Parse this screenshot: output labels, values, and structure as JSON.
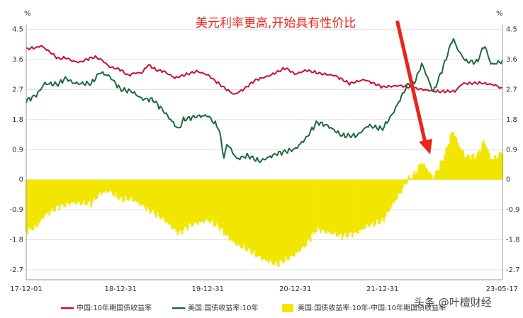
{
  "chart_data": {
    "type": "line",
    "title": "",
    "left_unit": "%",
    "right_unit": "%",
    "ylim": [
      -3.0,
      4.6
    ],
    "y_ticks": [
      "4.5",
      "3.6",
      "2.7",
      "1.8",
      "0.9",
      "0",
      "-0.9",
      "-1.8",
      "-2.7"
    ],
    "x_ticks": [
      "17-12-01",
      "18-12-31",
      "19-12-31",
      "20-12-31",
      "21-12-31",
      "23-05-17"
    ],
    "annotation": "美元利率更高,开始具有性价比",
    "watermark": "头条 @叶檀财经",
    "colors": {
      "china": "#c8102e",
      "us": "#1a6b3a",
      "spread": "#f2e600",
      "annotation": "#e8261c"
    },
    "series": [
      {
        "name": "中国:10年期国债收益率",
        "style": "line",
        "points": [
          [
            "2017-12-01",
            3.92
          ],
          [
            "2018-01-15",
            3.96
          ],
          [
            "2018-02-01",
            4.02
          ],
          [
            "2018-03-15",
            3.8
          ],
          [
            "2018-04-15",
            3.62
          ],
          [
            "2018-05-15",
            3.66
          ],
          [
            "2018-06-15",
            3.55
          ],
          [
            "2018-07-15",
            3.52
          ],
          [
            "2018-08-15",
            3.62
          ],
          [
            "2018-09-15",
            3.68
          ],
          [
            "2018-10-15",
            3.58
          ],
          [
            "2018-11-15",
            3.38
          ],
          [
            "2018-12-31",
            3.3
          ],
          [
            "2019-01-31",
            3.12
          ],
          [
            "2019-02-28",
            3.2
          ],
          [
            "2019-03-31",
            3.2
          ],
          [
            "2019-04-25",
            3.45
          ],
          [
            "2019-05-31",
            3.28
          ],
          [
            "2019-06-30",
            3.25
          ],
          [
            "2019-08-15",
            3.05
          ],
          [
            "2019-09-30",
            3.15
          ],
          [
            "2019-11-15",
            3.25
          ],
          [
            "2019-12-31",
            3.14
          ],
          [
            "2020-01-31",
            2.96
          ],
          [
            "2020-03-15",
            2.72
          ],
          [
            "2020-04-20",
            2.55
          ],
          [
            "2020-05-31",
            2.72
          ],
          [
            "2020-07-15",
            2.98
          ],
          [
            "2020-09-15",
            3.12
          ],
          [
            "2020-11-20",
            3.35
          ],
          [
            "2020-12-31",
            3.16
          ],
          [
            "2021-02-15",
            3.28
          ],
          [
            "2021-04-15",
            3.18
          ],
          [
            "2021-06-15",
            3.12
          ],
          [
            "2021-08-15",
            2.88
          ],
          [
            "2021-10-15",
            3.0
          ],
          [
            "2021-12-31",
            2.78
          ],
          [
            "2022-03-15",
            2.82
          ],
          [
            "2022-05-31",
            2.72
          ],
          [
            "2022-08-20",
            2.64
          ],
          [
            "2022-10-31",
            2.65
          ],
          [
            "2022-11-30",
            2.88
          ],
          [
            "2023-02-15",
            2.9
          ],
          [
            "2023-04-15",
            2.84
          ],
          [
            "2023-05-17",
            2.72
          ]
        ]
      },
      {
        "name": "美国:国债收益率:10年",
        "style": "line",
        "points": [
          [
            "2017-12-01",
            2.36
          ],
          [
            "2018-01-15",
            2.55
          ],
          [
            "2018-02-15",
            2.88
          ],
          [
            "2018-04-15",
            2.86
          ],
          [
            "2018-05-15",
            3.05
          ],
          [
            "2018-06-15",
            2.9
          ],
          [
            "2018-07-15",
            2.88
          ],
          [
            "2018-08-31",
            2.88
          ],
          [
            "2018-10-05",
            3.22
          ],
          [
            "2018-11-15",
            3.1
          ],
          [
            "2018-12-31",
            2.7
          ],
          [
            "2019-02-15",
            2.65
          ],
          [
            "2019-03-31",
            2.42
          ],
          [
            "2019-05-15",
            2.4
          ],
          [
            "2019-06-30",
            2.05
          ],
          [
            "2019-08-31",
            1.5
          ],
          [
            "2019-09-20",
            1.8
          ],
          [
            "2019-11-15",
            1.9
          ],
          [
            "2019-12-31",
            1.92
          ],
          [
            "2020-02-15",
            1.55
          ],
          [
            "2020-03-09",
            0.6
          ],
          [
            "2020-03-20",
            1.1
          ],
          [
            "2020-04-30",
            0.62
          ],
          [
            "2020-06-15",
            0.72
          ],
          [
            "2020-08-04",
            0.55
          ],
          [
            "2020-10-15",
            0.78
          ],
          [
            "2020-12-31",
            0.92
          ],
          [
            "2021-02-15",
            1.25
          ],
          [
            "2021-03-31",
            1.72
          ],
          [
            "2021-05-15",
            1.62
          ],
          [
            "2021-07-15",
            1.32
          ],
          [
            "2021-09-15",
            1.32
          ],
          [
            "2021-10-31",
            1.62
          ],
          [
            "2021-12-31",
            1.52
          ],
          [
            "2022-02-15",
            2.02
          ],
          [
            "2022-04-15",
            2.85
          ],
          [
            "2022-05-15",
            2.92
          ],
          [
            "2022-06-14",
            3.48
          ],
          [
            "2022-08-01",
            2.62
          ],
          [
            "2022-09-15",
            3.45
          ],
          [
            "2022-10-21",
            4.24
          ],
          [
            "2022-11-15",
            3.85
          ],
          [
            "2022-12-15",
            3.55
          ],
          [
            "2023-01-31",
            3.52
          ],
          [
            "2023-03-02",
            4.05
          ],
          [
            "2023-03-31",
            3.45
          ],
          [
            "2023-04-15",
            3.48
          ],
          [
            "2023-05-17",
            3.55
          ]
        ]
      },
      {
        "name": "美国:国债收益率:10年-中国:10年期国债收益率",
        "style": "bar",
        "points": [
          [
            "2017-12-01",
            -1.56
          ],
          [
            "2018-01-15",
            -1.41
          ],
          [
            "2018-02-15",
            -1.08
          ],
          [
            "2018-04-15",
            -0.82
          ],
          [
            "2018-06-15",
            -0.7
          ],
          [
            "2018-08-31",
            -0.72
          ],
          [
            "2018-10-05",
            -0.42
          ],
          [
            "2018-11-15",
            -0.35
          ],
          [
            "2018-12-31",
            -0.6
          ],
          [
            "2019-02-15",
            -0.58
          ],
          [
            "2019-04-15",
            -0.85
          ],
          [
            "2019-06-30",
            -1.2
          ],
          [
            "2019-08-31",
            -1.62
          ],
          [
            "2019-10-15",
            -1.38
          ],
          [
            "2019-12-31",
            -1.22
          ],
          [
            "2020-02-15",
            -1.42
          ],
          [
            "2020-03-20",
            -1.7
          ],
          [
            "2020-04-30",
            -1.95
          ],
          [
            "2020-06-15",
            -2.1
          ],
          [
            "2020-08-15",
            -2.38
          ],
          [
            "2020-10-15",
            -2.55
          ],
          [
            "2020-12-31",
            -2.25
          ],
          [
            "2021-02-15",
            -1.95
          ],
          [
            "2021-03-31",
            -1.48
          ],
          [
            "2021-05-15",
            -1.58
          ],
          [
            "2021-07-15",
            -1.7
          ],
          [
            "2021-09-15",
            -1.6
          ],
          [
            "2021-10-31",
            -1.38
          ],
          [
            "2021-12-31",
            -1.25
          ],
          [
            "2022-02-15",
            -0.72
          ],
          [
            "2022-03-31",
            -0.22
          ],
          [
            "2022-04-15",
            0.0
          ],
          [
            "2022-05-15",
            0.18
          ],
          [
            "2022-06-14",
            0.55
          ],
          [
            "2022-08-01",
            0.05
          ],
          [
            "2022-09-15",
            0.7
          ],
          [
            "2022-10-21",
            1.5
          ],
          [
            "2022-11-15",
            1.05
          ],
          [
            "2022-12-15",
            0.7
          ],
          [
            "2023-01-31",
            0.72
          ],
          [
            "2023-03-02",
            1.18
          ],
          [
            "2023-03-31",
            0.62
          ],
          [
            "2023-04-15",
            0.65
          ],
          [
            "2023-05-17",
            0.83
          ]
        ]
      }
    ]
  }
}
